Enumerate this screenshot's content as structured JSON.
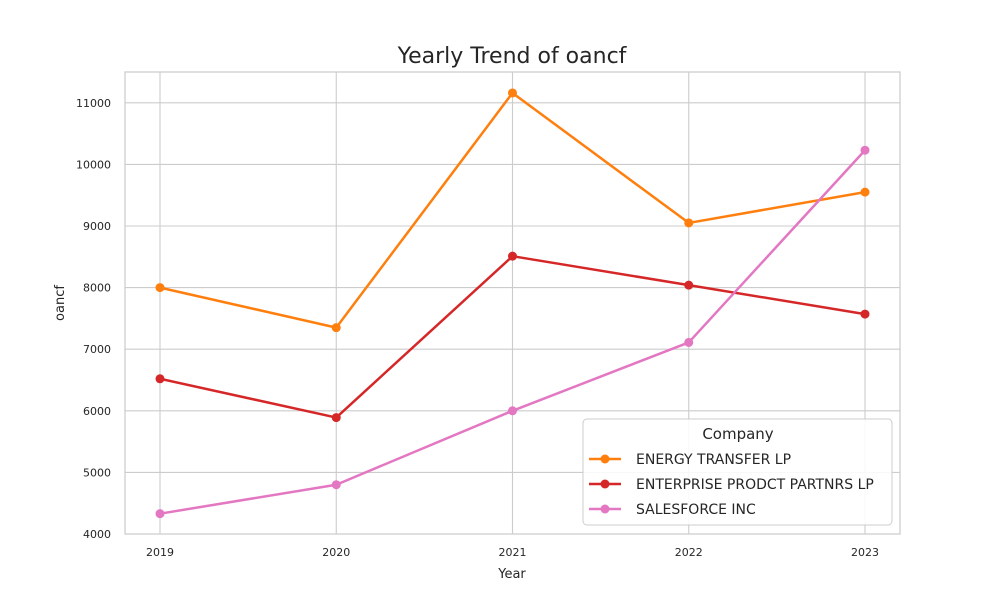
{
  "chart_data": {
    "type": "line",
    "title": "Yearly Trend of oancf",
    "xlabel": "Year",
    "ylabel": "oancf",
    "x": [
      2019,
      2020,
      2021,
      2022,
      2023
    ],
    "xticks": [
      "2019",
      "2020",
      "2021",
      "2022",
      "2023"
    ],
    "ylim": [
      4000,
      11500
    ],
    "yticks": [
      4000,
      5000,
      6000,
      7000,
      8000,
      9000,
      10000,
      11000
    ],
    "grid": true,
    "legend": {
      "title": "Company",
      "placement": "lower-right"
    },
    "series": [
      {
        "name": "ENERGY TRANSFER LP",
        "color": "#ff7f0e",
        "values": [
          8000,
          7350,
          11160,
          9050,
          9550
        ]
      },
      {
        "name": "ENTERPRISE PRODCT PARTNRS LP",
        "color": "#d62728",
        "values": [
          6520,
          5890,
          8510,
          8040,
          7570
        ]
      },
      {
        "name": "SALESFORCE INC",
        "color": "#e377c2",
        "values": [
          4330,
          4800,
          6000,
          7110,
          10230
        ]
      }
    ]
  }
}
